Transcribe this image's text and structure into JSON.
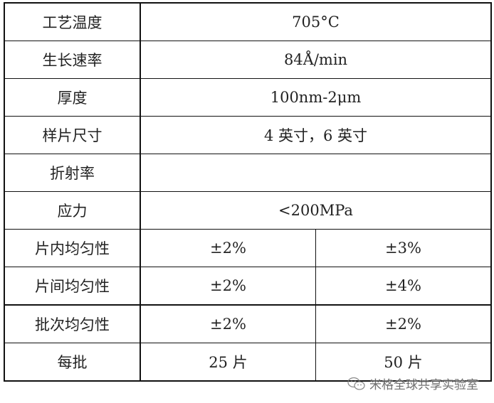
{
  "rows": [
    {
      "label": "工艺温度",
      "values": [
        "705°C"
      ]
    },
    {
      "label": "生长速率",
      "values": [
        "84Å/min"
      ]
    },
    {
      "label": "厚度",
      "values": [
        "100nm-2μm"
      ]
    },
    {
      "label": "样片尺寸",
      "values": [
        "4 英寸，6 英寸"
      ]
    },
    {
      "label": "折射率",
      "values": [
        ""
      ]
    },
    {
      "label": "应力",
      "values": [
        "<200MPa"
      ]
    },
    {
      "label": "片内均匀性",
      "values": [
        "±2%",
        "±3%"
      ]
    },
    {
      "label": "片间均匀性",
      "values": [
        "±2%",
        "±4%"
      ]
    },
    {
      "label": "批次均匀性",
      "values": [
        "±2%",
        "±2%"
      ]
    },
    {
      "label": "每批",
      "values": [
        "25 片",
        "50 片"
      ]
    }
  ],
  "watermark": {
    "text": "米格全球共享实验室",
    "icon": "wechat-icon"
  }
}
